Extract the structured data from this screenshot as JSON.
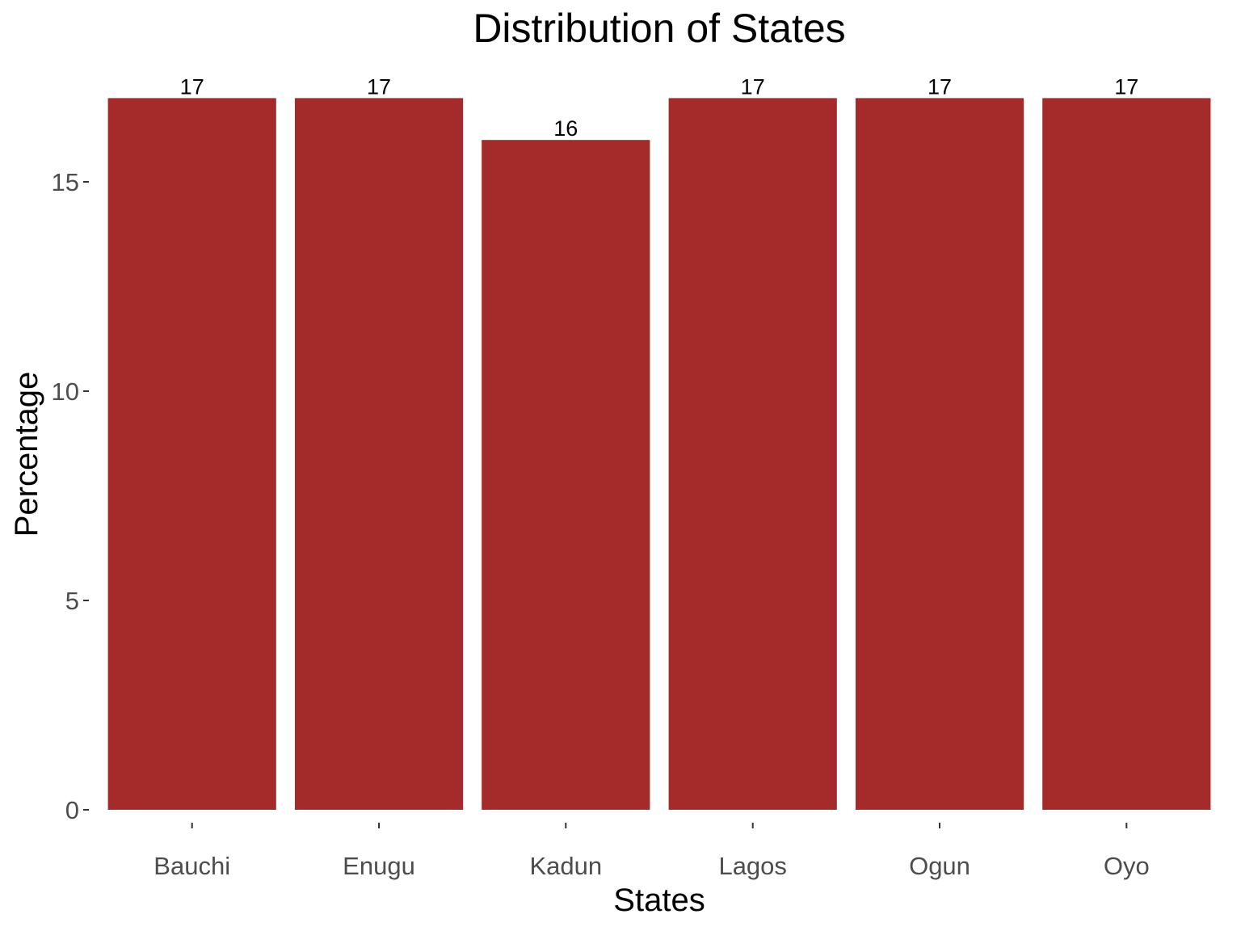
{
  "chart_data": {
    "type": "bar",
    "title": "Distribution of States",
    "xlabel": "States",
    "ylabel": "Percentage",
    "categories": [
      "Bauchi",
      "Enugu",
      "Kadun",
      "Lagos",
      "Ogun",
      "Oyo"
    ],
    "values": [
      17,
      17,
      16,
      17,
      17,
      17
    ],
    "data_labels": [
      "17",
      "17",
      "16",
      "17",
      "17",
      "17"
    ],
    "y_ticks": [
      0,
      5,
      10,
      15
    ],
    "ylim": [
      0,
      17
    ],
    "grid": false,
    "legend": "none",
    "bar_color": "#a52a2a"
  }
}
